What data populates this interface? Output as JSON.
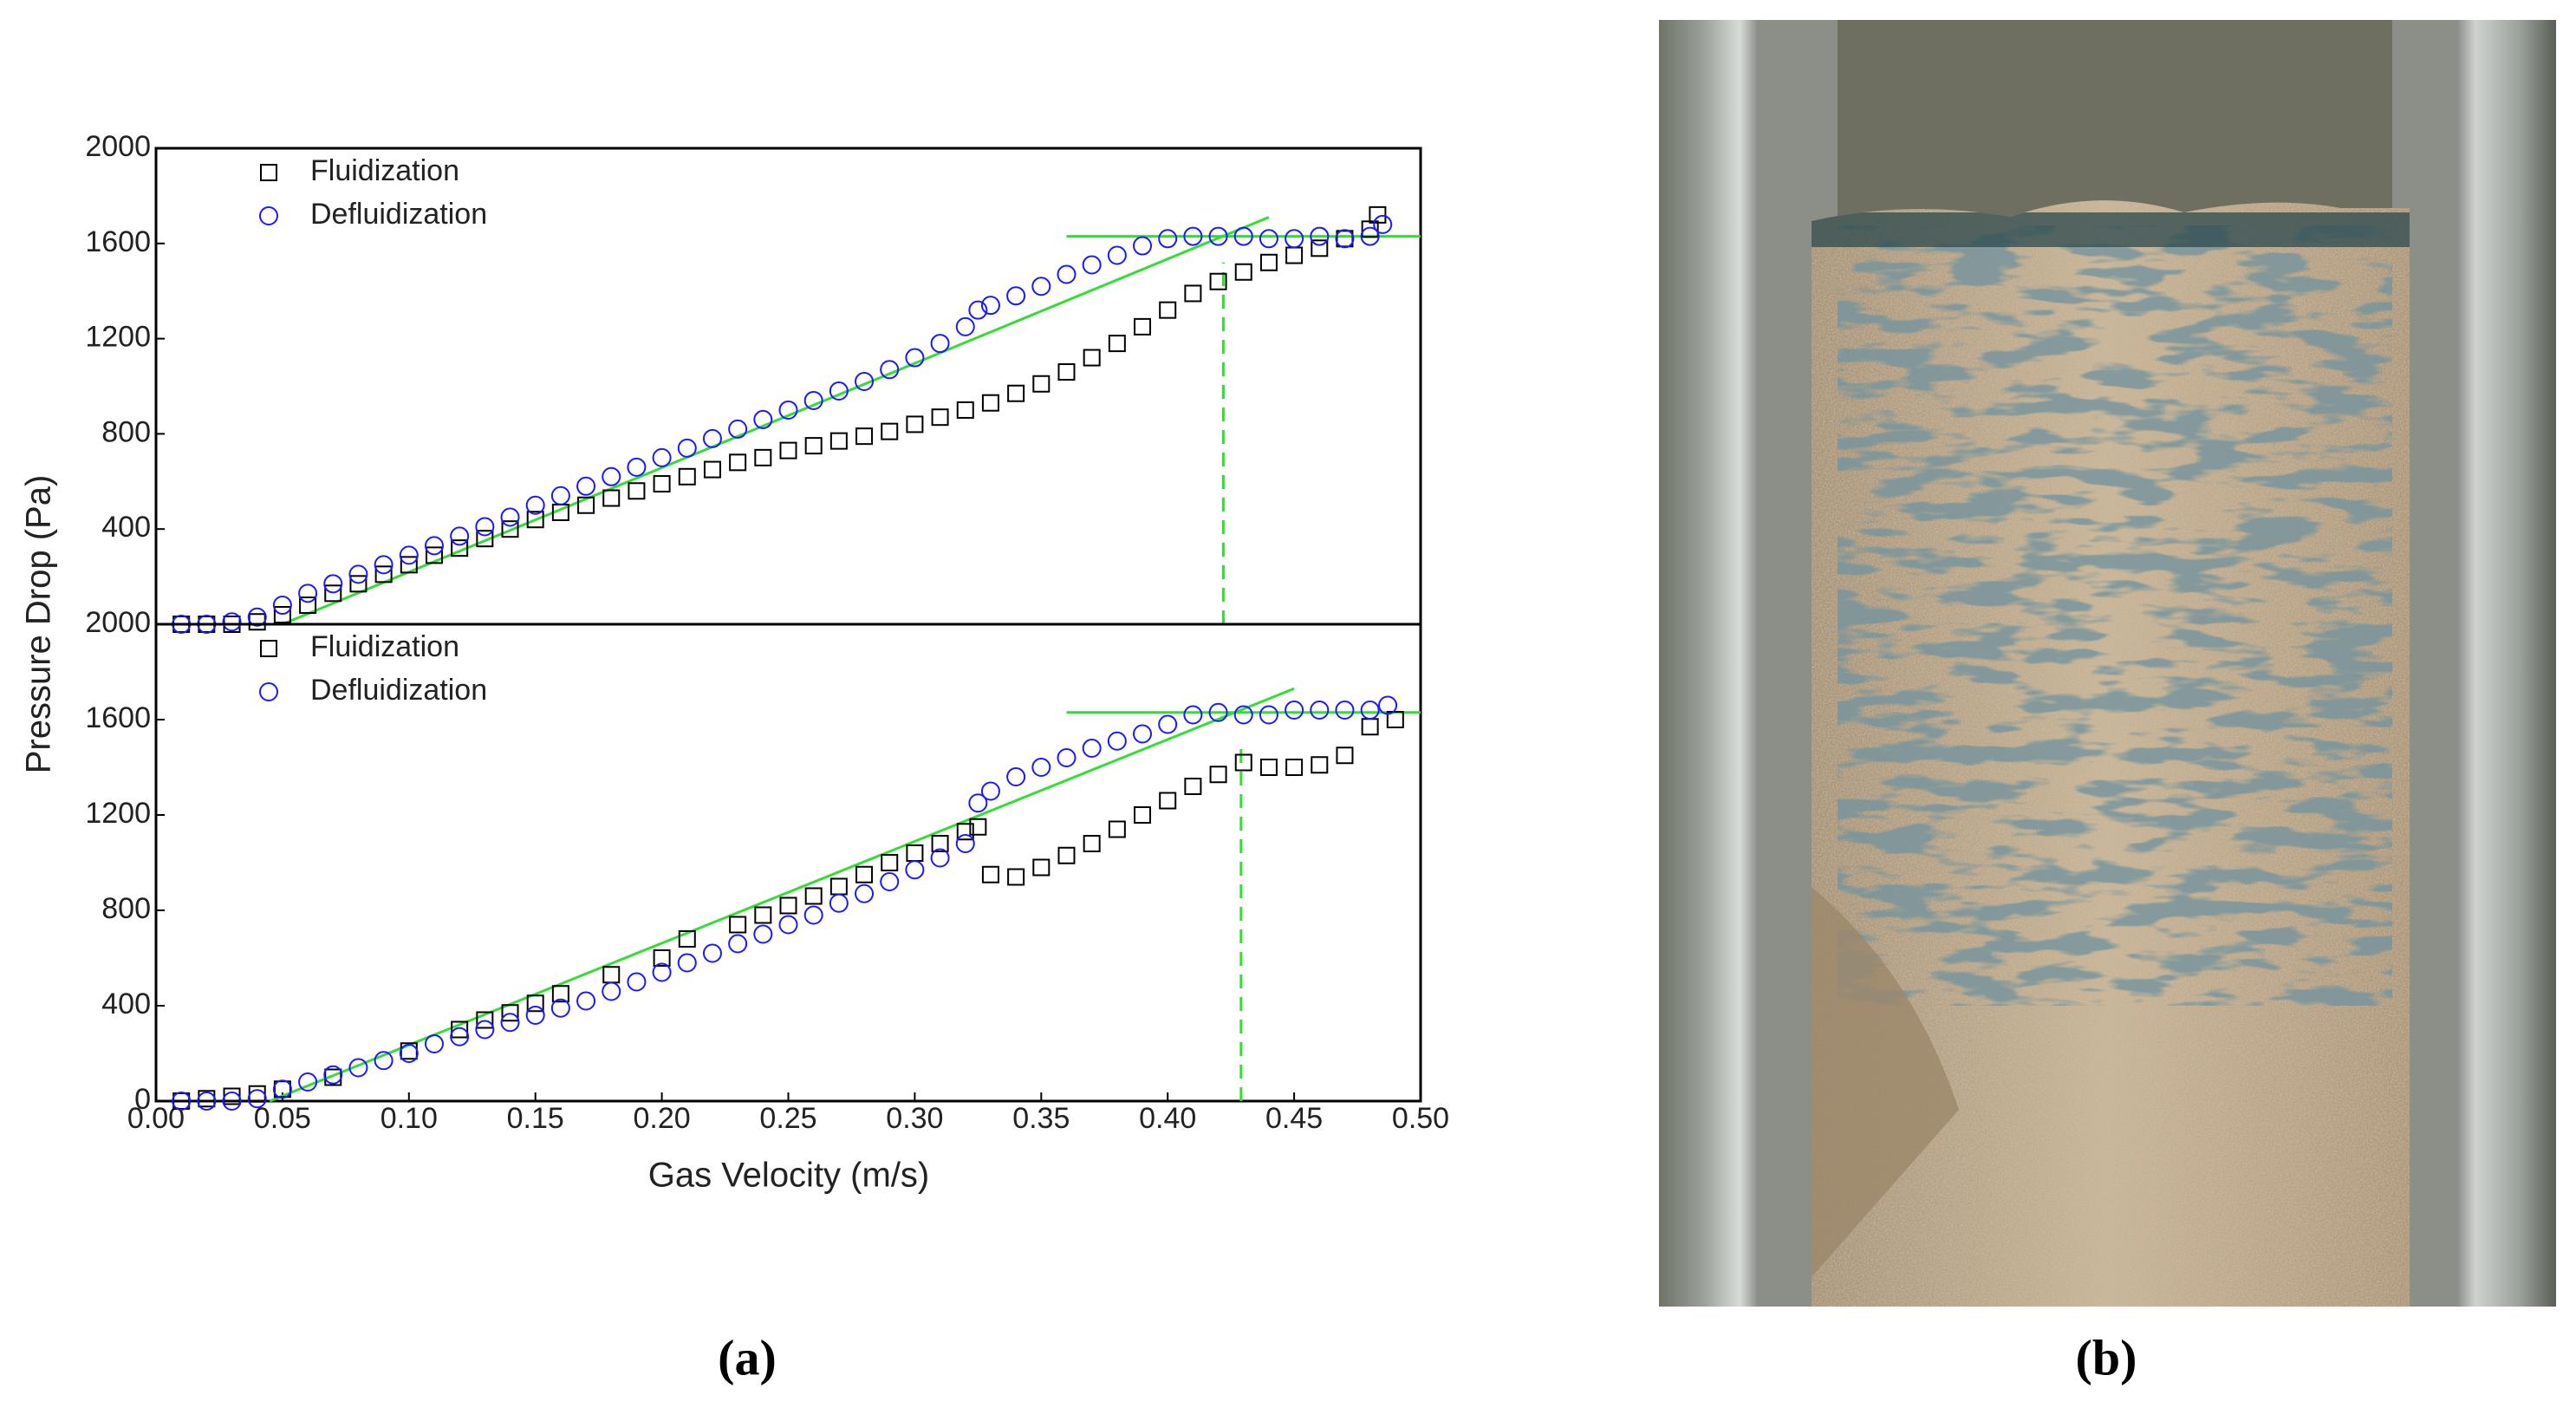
{
  "chart_data": [
    {
      "type": "scatter",
      "ylabel": "Pressure Drop (Pa)",
      "xlim": [
        0,
        0.5
      ],
      "ylim": [
        0,
        2000
      ],
      "yticks": [
        400,
        800,
        1200,
        1600,
        2000
      ],
      "legend": "upper left",
      "series": [
        {
          "name": "Fluidization",
          "color": "#000000",
          "marker": "square",
          "x": [
            0.01,
            0.02,
            0.03,
            0.04,
            0.05,
            0.06,
            0.07,
            0.08,
            0.09,
            0.1,
            0.11,
            0.12,
            0.13,
            0.14,
            0.15,
            0.16,
            0.17,
            0.18,
            0.19,
            0.2,
            0.21,
            0.22,
            0.23,
            0.24,
            0.25,
            0.26,
            0.27,
            0.28,
            0.29,
            0.3,
            0.31,
            0.32,
            0.33,
            0.34,
            0.35,
            0.36,
            0.37,
            0.38,
            0.39,
            0.4,
            0.41,
            0.42,
            0.43,
            0.44,
            0.45,
            0.46,
            0.47,
            0.48,
            0.483
          ],
          "values": [
            0,
            0,
            0,
            10,
            40,
            80,
            130,
            170,
            210,
            250,
            290,
            320,
            360,
            400,
            440,
            470,
            500,
            530,
            560,
            590,
            620,
            650,
            680,
            700,
            730,
            750,
            770,
            790,
            810,
            840,
            870,
            900,
            930,
            970,
            1010,
            1060,
            1120,
            1180,
            1250,
            1320,
            1390,
            1440,
            1480,
            1520,
            1550,
            1580,
            1620,
            1660,
            1720
          ]
        },
        {
          "name": "Defluidization",
          "color": "#1a1aff",
          "marker": "circle",
          "x": [
            0.01,
            0.02,
            0.03,
            0.04,
            0.05,
            0.06,
            0.07,
            0.08,
            0.09,
            0.1,
            0.11,
            0.12,
            0.13,
            0.14,
            0.15,
            0.16,
            0.17,
            0.18,
            0.19,
            0.2,
            0.21,
            0.22,
            0.23,
            0.24,
            0.25,
            0.26,
            0.27,
            0.28,
            0.29,
            0.3,
            0.31,
            0.32,
            0.325,
            0.33,
            0.34,
            0.35,
            0.36,
            0.37,
            0.38,
            0.39,
            0.4,
            0.41,
            0.42,
            0.43,
            0.44,
            0.45,
            0.46,
            0.47,
            0.48,
            0.485
          ],
          "values": [
            0,
            0,
            10,
            30,
            80,
            130,
            170,
            210,
            250,
            290,
            330,
            370,
            410,
            450,
            500,
            540,
            580,
            620,
            660,
            700,
            740,
            780,
            820,
            860,
            900,
            940,
            980,
            1020,
            1070,
            1120,
            1180,
            1250,
            1320,
            1340,
            1380,
            1420,
            1470,
            1510,
            1550,
            1590,
            1620,
            1630,
            1630,
            1630,
            1620,
            1620,
            1630,
            1620,
            1630,
            1680
          ]
        }
      ],
      "fit_lines": [
        {
          "color": "#33dd33",
          "dash": false,
          "x": [
            0.05,
            0.44
          ],
          "y": [
            0,
            1710
          ]
        },
        {
          "color": "#33dd33",
          "dash": false,
          "x": [
            0.36,
            0.5
          ],
          "y": [
            1630,
            1630
          ]
        },
        {
          "color": "#33dd33",
          "dash": true,
          "x": [
            0.422,
            0.422
          ],
          "y": [
            0,
            1520
          ]
        }
      ]
    },
    {
      "type": "scatter",
      "xlabel": "Gas Velocity (m/s)",
      "xlim": [
        0,
        0.5
      ],
      "ylim": [
        0,
        2000
      ],
      "xticks": [
        {
          "value": 0,
          "label": "0.00"
        },
        {
          "value": 0.05,
          "label": "0.05"
        },
        {
          "value": 0.1,
          "label": "0.10"
        },
        {
          "value": 0.15,
          "label": "0.15"
        },
        {
          "value": 0.2,
          "label": "0.20"
        },
        {
          "value": 0.25,
          "label": "0.25"
        },
        {
          "value": 0.3,
          "label": "0.30"
        },
        {
          "value": 0.35,
          "label": "0.35"
        },
        {
          "value": 0.4,
          "label": "0.40"
        },
        {
          "value": 0.45,
          "label": "0.45"
        },
        {
          "value": 0.5,
          "label": "0.50"
        }
      ],
      "yticks": [
        0,
        400,
        800,
        1200,
        1600,
        2000
      ],
      "legend": "upper left",
      "series": [
        {
          "name": "Fluidization",
          "color": "#000000",
          "marker": "square",
          "x": [
            0.01,
            0.02,
            0.03,
            0.04,
            0.05,
            0.07,
            0.1,
            0.12,
            0.13,
            0.14,
            0.15,
            0.16,
            0.18,
            0.2,
            0.21,
            0.23,
            0.24,
            0.25,
            0.26,
            0.27,
            0.28,
            0.29,
            0.3,
            0.31,
            0.32,
            0.325,
            0.33,
            0.34,
            0.35,
            0.36,
            0.37,
            0.38,
            0.39,
            0.4,
            0.41,
            0.42,
            0.43,
            0.44,
            0.45,
            0.46,
            0.47,
            0.48,
            0.49
          ],
          "values": [
            0,
            10,
            20,
            30,
            50,
            100,
            210,
            300,
            340,
            370,
            410,
            450,
            530,
            600,
            680,
            740,
            780,
            820,
            860,
            900,
            950,
            1000,
            1040,
            1080,
            1130,
            1150,
            950,
            940,
            980,
            1030,
            1080,
            1140,
            1200,
            1260,
            1320,
            1370,
            1420,
            1400,
            1400,
            1410,
            1450,
            1570,
            1600
          ]
        },
        {
          "name": "Defluidization",
          "color": "#1a1aff",
          "marker": "circle",
          "x": [
            0.01,
            0.02,
            0.03,
            0.04,
            0.05,
            0.06,
            0.07,
            0.08,
            0.09,
            0.1,
            0.11,
            0.12,
            0.13,
            0.14,
            0.15,
            0.16,
            0.17,
            0.18,
            0.19,
            0.2,
            0.21,
            0.22,
            0.23,
            0.24,
            0.25,
            0.26,
            0.27,
            0.28,
            0.29,
            0.3,
            0.31,
            0.32,
            0.325,
            0.33,
            0.34,
            0.35,
            0.36,
            0.37,
            0.38,
            0.39,
            0.4,
            0.41,
            0.42,
            0.43,
            0.44,
            0.45,
            0.46,
            0.47,
            0.48,
            0.487
          ],
          "values": [
            0,
            0,
            0,
            10,
            50,
            80,
            110,
            140,
            170,
            200,
            240,
            270,
            300,
            330,
            360,
            390,
            420,
            460,
            500,
            540,
            580,
            620,
            660,
            700,
            740,
            780,
            830,
            870,
            920,
            970,
            1020,
            1080,
            1250,
            1300,
            1360,
            1400,
            1440,
            1480,
            1510,
            1540,
            1580,
            1620,
            1630,
            1620,
            1620,
            1640,
            1640,
            1640,
            1640,
            1660
          ]
        }
      ],
      "fit_lines": [
        {
          "color": "#33dd33",
          "dash": false,
          "x": [
            0.045,
            0.45
          ],
          "y": [
            0,
            1730
          ]
        },
        {
          "color": "#33dd33",
          "dash": false,
          "x": [
            0.36,
            0.5
          ],
          "y": [
            1630,
            1630
          ]
        },
        {
          "color": "#33dd33",
          "dash": true,
          "x": [
            0.429,
            0.429
          ],
          "y": [
            0,
            1500
          ]
        }
      ]
    }
  ],
  "panel_labels": [
    "(a)",
    "(b)"
  ]
}
